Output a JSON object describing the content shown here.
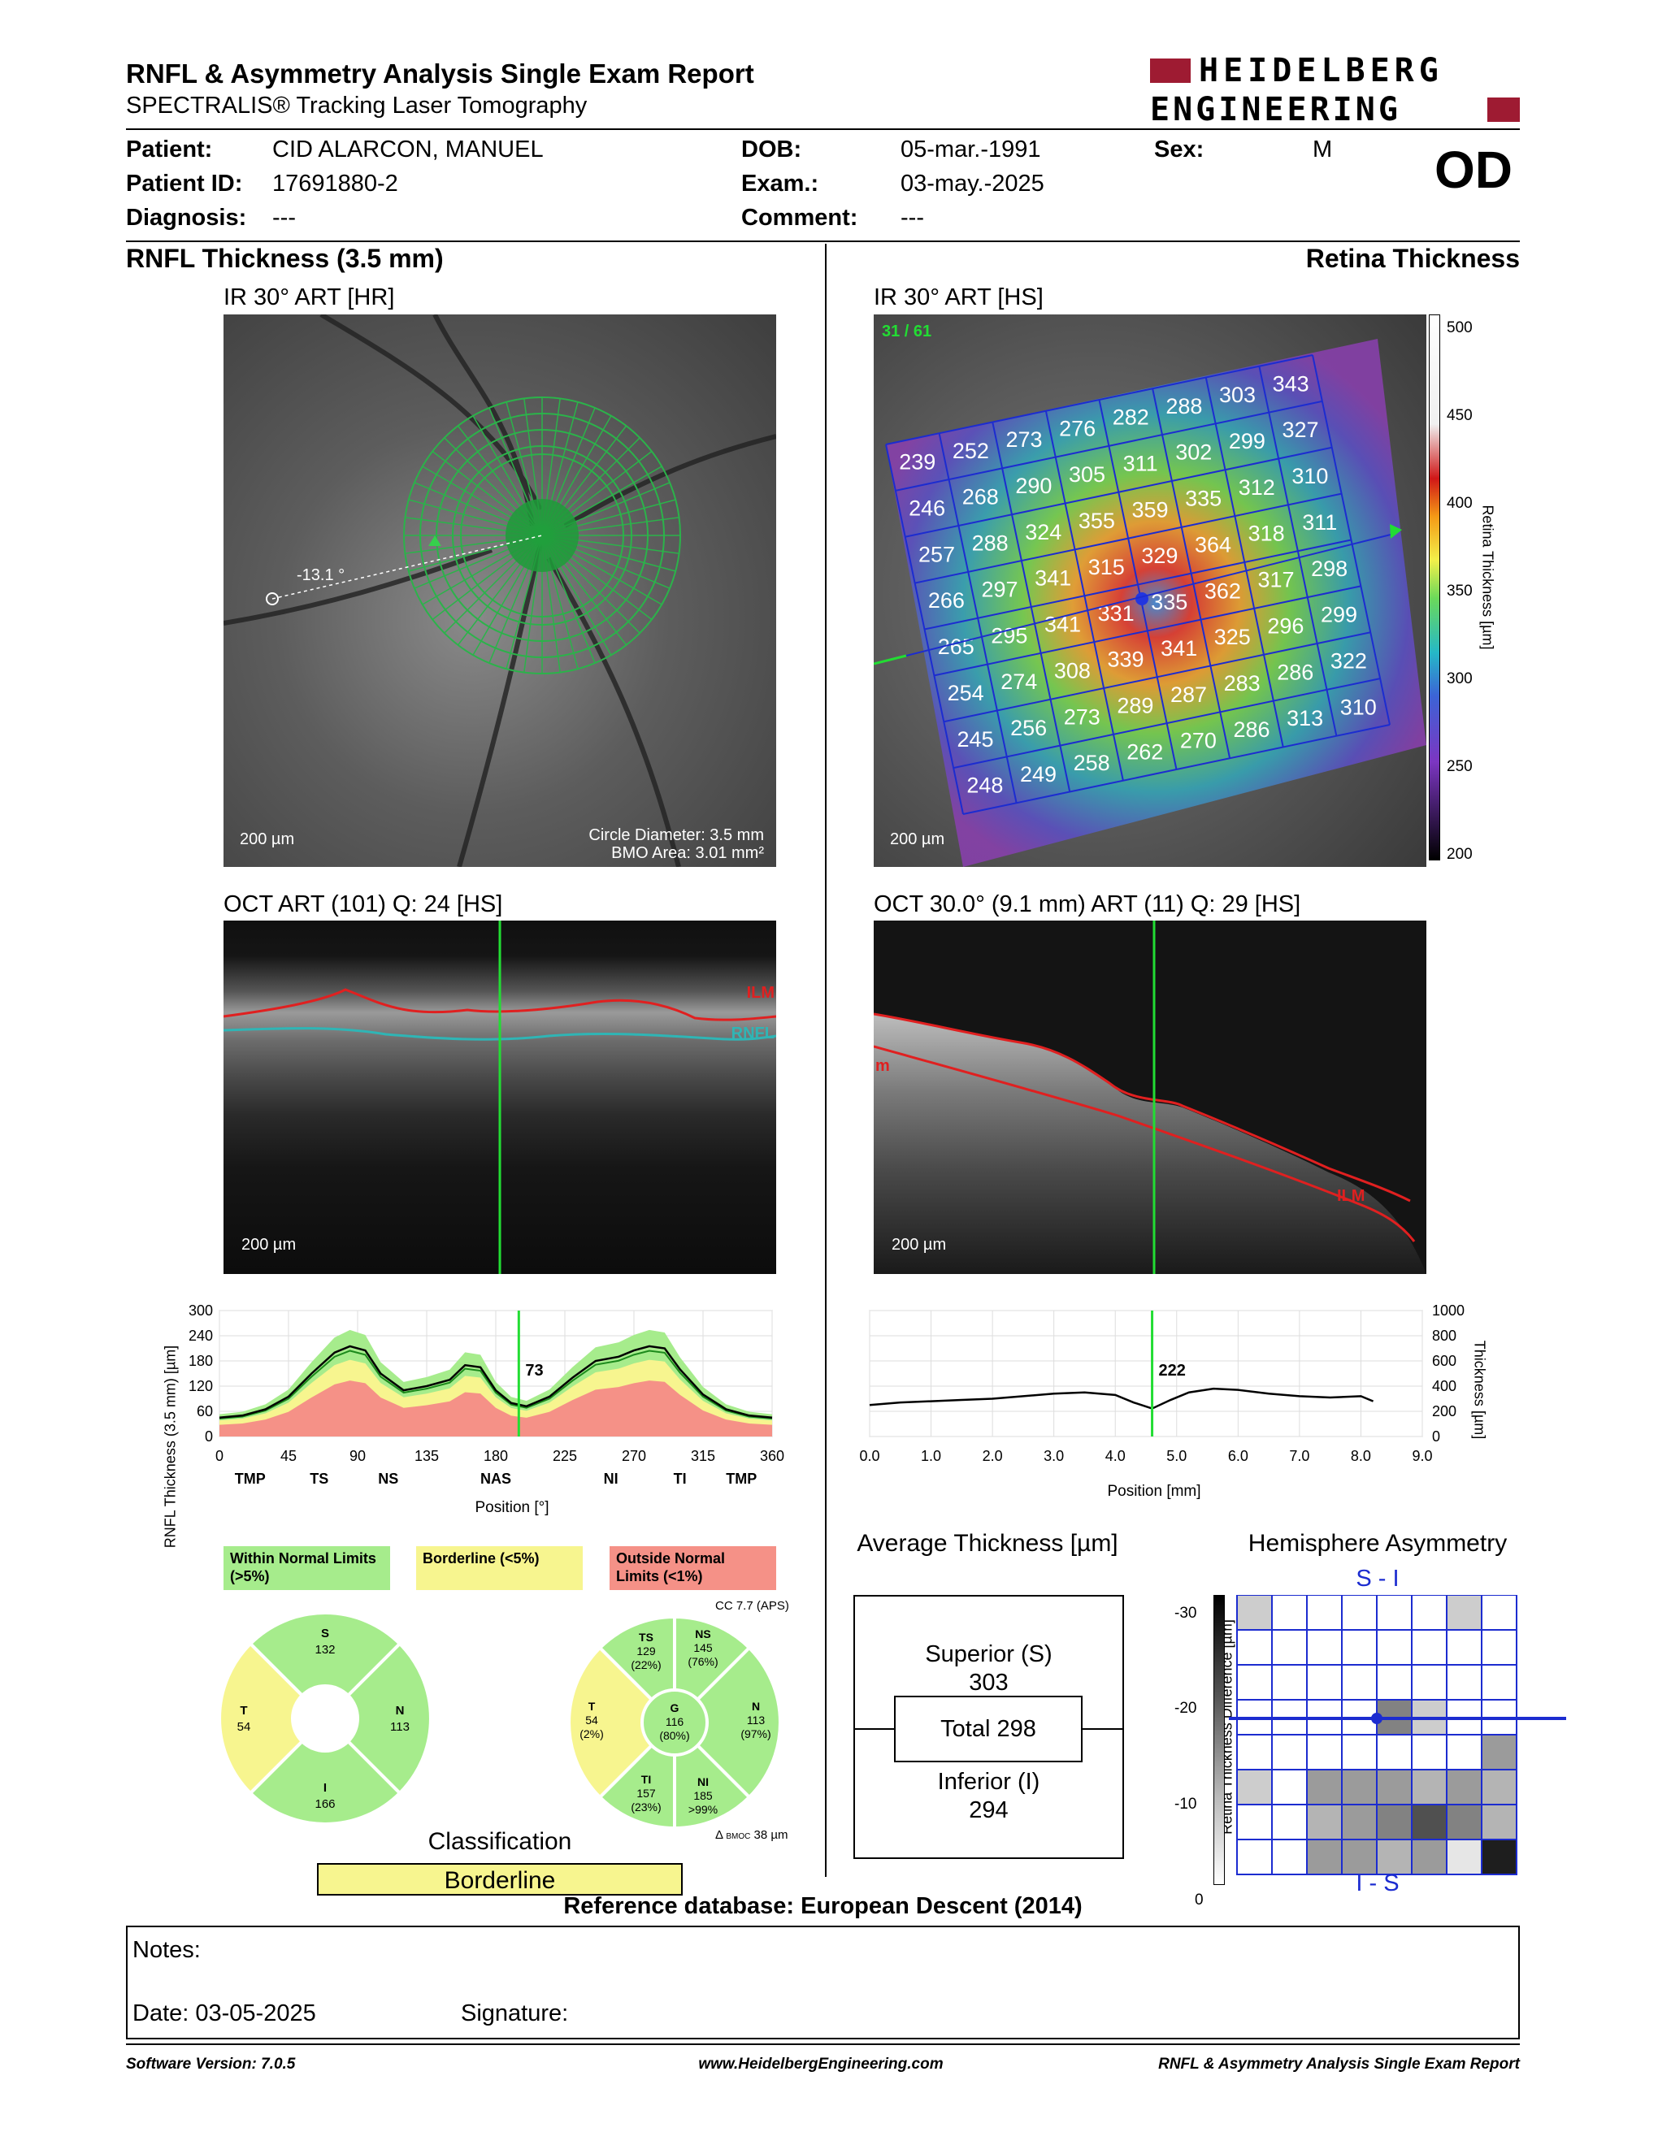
{
  "header": {
    "title": "RNFL & Asymmetry Analysis Single Exam Report",
    "subtitle": "SPECTRALIS® Tracking Laser Tomography",
    "brand_line1": "HEIDELBERG",
    "brand_line2": "ENGINEERING",
    "brand_color": "#9e1b32"
  },
  "patient": {
    "patient_label": "Patient:",
    "patient_value": "CID ALARCON, MANUEL",
    "id_label": "Patient ID:",
    "id_value": "17691880-2",
    "diagnosis_label": "Diagnosis:",
    "diagnosis_value": "---",
    "dob_label": "DOB:",
    "dob_value": "05-mar.-1991",
    "exam_label": "Exam.:",
    "exam_value": "03-may.-2025",
    "comment_label": "Comment:",
    "comment_value": "---",
    "sex_label": "Sex:",
    "sex_value": "M",
    "eye": "OD"
  },
  "left": {
    "section_title": "RNFL Thickness (3.5 mm)",
    "fundus_title": "IR 30° ART [HR]",
    "fundus_angle": "-13.1 °",
    "fundus_scale": "200 µm",
    "circle_diameter": "Circle Diameter: 3.5 mm",
    "bmo_area": "BMO Area: 3.01 mm²",
    "oct_title": "OCT ART (101) Q: 24 [HS]",
    "oct_scale": "200 µm",
    "ilm_label": "ILM",
    "rnfl_label": "RNFL"
  },
  "right": {
    "section_title": "Retina Thickness",
    "fundus_title": "IR 30° ART [HS]",
    "fundus_counter": "31 / 61",
    "fundus_scale": "200 µm",
    "colorbar_label": "Retina Thickness [µm]",
    "colorbar_ticks": [
      "500",
      "450",
      "400",
      "350",
      "300",
      "250",
      "200"
    ],
    "grid_values": [
      [
        "239",
        "252",
        "273",
        "276",
        "282",
        "288",
        "303",
        "343"
      ],
      [
        "246",
        "268",
        "290",
        "305",
        "311",
        "302",
        "299",
        "327"
      ],
      [
        "257",
        "288",
        "324",
        "355",
        "359",
        "335",
        "312",
        "310"
      ],
      [
        "266",
        "297",
        "341",
        "315",
        "329",
        "364",
        "318",
        "311"
      ],
      [
        "265",
        "295",
        "341",
        "331",
        "335",
        "362",
        "317",
        "298"
      ],
      [
        "254",
        "274",
        "308",
        "339",
        "341",
        "325",
        "296",
        "299"
      ],
      [
        "245",
        "256",
        "273",
        "289",
        "287",
        "283",
        "286",
        "322"
      ],
      [
        "248",
        "249",
        "258",
        "262",
        "270",
        "286",
        "313",
        "310"
      ]
    ],
    "oct_title": "OCT 30.0° (9.1 mm) ART (11) Q: 29 [HS]",
    "oct_scale": "200 µm",
    "ilm_label": "ILM",
    "ilm_left_label": "m"
  },
  "rnfl_plot": {
    "ylabel": "RNFL Thickness (3.5 mm) [µm]",
    "xlabel": "Position [°]",
    "yticks": [
      "300",
      "240",
      "180",
      "120",
      "60",
      "0"
    ],
    "xticks": [
      "0",
      "45",
      "90",
      "135",
      "180",
      "225",
      "270",
      "315",
      "360"
    ],
    "sectors": [
      "TMP",
      "TS",
      "NS",
      "NAS",
      "NI",
      "TI",
      "TMP"
    ],
    "marker_value": "73"
  },
  "retina_plot": {
    "ylabel": "Thickness [µm]",
    "xlabel": "Position [mm]",
    "yticks": [
      "1000",
      "800",
      "600",
      "400",
      "200",
      "0"
    ],
    "xticks": [
      "0.0",
      "1.0",
      "2.0",
      "3.0",
      "4.0",
      "5.0",
      "6.0",
      "7.0",
      "8.0",
      "9.0"
    ],
    "marker_value": "222"
  },
  "chart_data": [
    {
      "type": "line",
      "ylabel": "RNFL Thickness (3.5 mm) [µm]",
      "xlabel": "Position [°]",
      "xlim": [
        0,
        360
      ],
      "ylim": [
        0,
        300
      ],
      "series": [
        {
          "x": [
            0,
            15,
            30,
            45,
            60,
            75,
            85,
            95,
            105,
            120,
            135,
            150,
            160,
            170,
            180,
            190,
            200,
            215,
            230,
            245,
            260,
            270,
            280,
            290,
            300,
            315,
            330,
            345,
            360
          ],
          "values": [
            45,
            50,
            65,
            95,
            150,
            200,
            215,
            205,
            150,
            110,
            120,
            135,
            170,
            165,
            110,
            80,
            72,
            95,
            140,
            180,
            190,
            205,
            215,
            210,
            160,
            100,
            65,
            50,
            45
          ]
        }
      ],
      "marker": {
        "x": 195,
        "value": 73
      }
    },
    {
      "type": "line",
      "ylabel": "Thickness [µm]",
      "xlabel": "Position [mm]",
      "xlim": [
        0,
        9
      ],
      "ylim": [
        0,
        1000
      ],
      "series": [
        {
          "x": [
            0.0,
            0.5,
            1.0,
            1.5,
            2.0,
            2.5,
            3.0,
            3.5,
            4.0,
            4.3,
            4.6,
            4.9,
            5.2,
            5.6,
            6.0,
            6.5,
            7.0,
            7.5,
            8.0,
            8.2
          ],
          "values": [
            250,
            270,
            280,
            290,
            300,
            320,
            340,
            350,
            330,
            270,
            222,
            290,
            350,
            380,
            370,
            340,
            320,
            310,
            320,
            280
          ]
        }
      ],
      "marker": {
        "x": 4.6,
        "value": 222
      }
    }
  ],
  "legend": {
    "within": "Within Normal Limits (>5%)",
    "borderline": "Borderline (<5%)",
    "outside": "Outside Normal Limits (<1%)",
    "color_within": "#a6ec8c",
    "color_borderline": "#f7f58f",
    "color_outside": "#f59187"
  },
  "sector_chart_1": {
    "S": {
      "label": "S",
      "value": "132"
    },
    "T": {
      "label": "T",
      "value": "54"
    },
    "N": {
      "label": "N",
      "value": "113"
    },
    "I": {
      "label": "I",
      "value": "166"
    }
  },
  "sector_chart_2": {
    "cc": "CC 7.7 (APS)",
    "TS": {
      "label": "TS",
      "value": "129",
      "pct": "(22%)"
    },
    "NS": {
      "label": "NS",
      "value": "145",
      "pct": "(76%)"
    },
    "T": {
      "label": "T",
      "value": "54",
      "pct": "(2%)"
    },
    "G": {
      "label": "G",
      "value": "116",
      "pct": "(80%)"
    },
    "N": {
      "label": "N",
      "value": "113",
      "pct": "(97%)"
    },
    "TI": {
      "label": "TI",
      "value": "157",
      "pct": "(23%)"
    },
    "NI": {
      "label": "NI",
      "value": "185",
      "pct": ">99%"
    },
    "bmoc": "38 µm",
    "bmoc_label": "BMOC"
  },
  "classification": {
    "title": "Classification",
    "value": "Borderline"
  },
  "average_thickness": {
    "title": "Average Thickness [µm]",
    "superior_label": "Superior (S)",
    "superior_value": "303",
    "total": "Total 298",
    "inferior_label": "Inferior (I)",
    "inferior_value": "294"
  },
  "asymmetry": {
    "title": "Hemisphere Asymmetry",
    "top_label": "S - I",
    "bottom_label": "I - S",
    "ylabel": "Retina Thickness Difference [µm]",
    "yticks": [
      "-30",
      "-20",
      "-10",
      "0"
    ]
  },
  "reference": "Reference database: European Descent (2014)",
  "notes": {
    "notes_label": "Notes:",
    "date_label": "Date: 03-05-2025",
    "signature_label": "Signature:"
  },
  "footer": {
    "software": "Software Version: 7.0.5",
    "website": "www.HeidelbergEngineering.com",
    "report": "RNFL & Asymmetry Analysis Single Exam Report"
  }
}
